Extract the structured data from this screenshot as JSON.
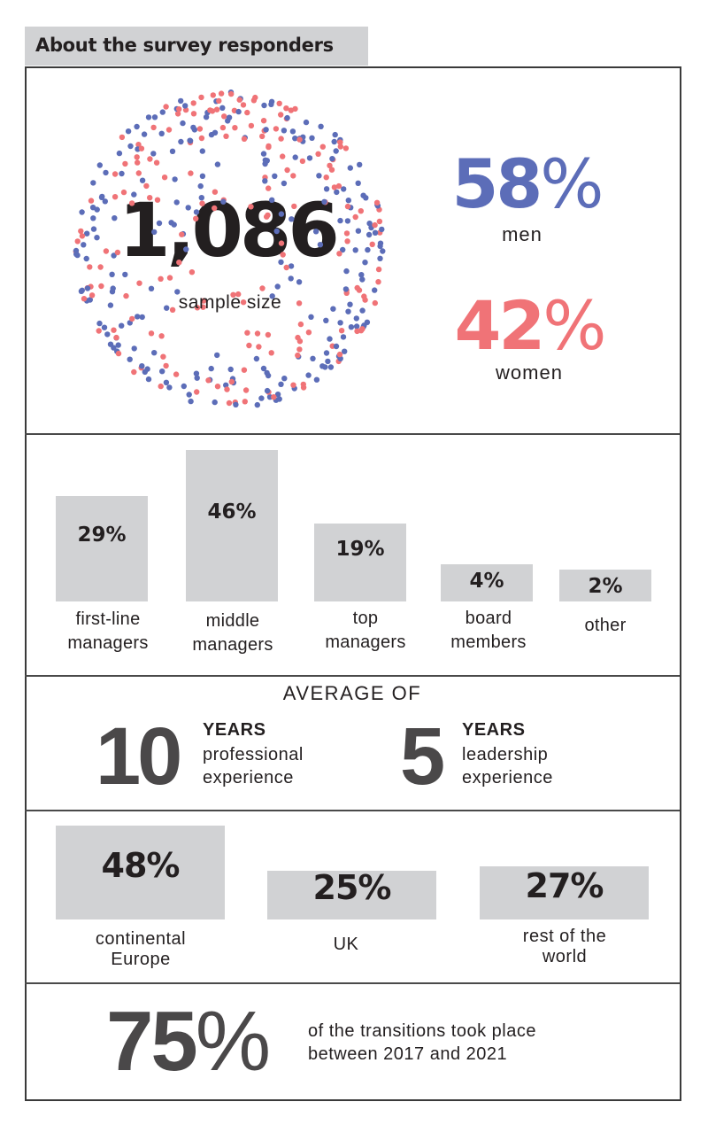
{
  "header": {
    "title": "About the survey responders"
  },
  "colors": {
    "men": "#5c6db8",
    "women": "#f07377",
    "bar": "#d1d2d4",
    "text": "#231f20",
    "stat_gray": "#4a4849"
  },
  "sample": {
    "number": "1,086",
    "label": "sample size",
    "dot_cloud": {
      "men_share": 0.58,
      "women_share": 0.42
    }
  },
  "gender": {
    "men": {
      "value": "58",
      "sign": "%",
      "label": "men"
    },
    "women": {
      "value": "42",
      "sign": "%",
      "label": "women"
    }
  },
  "chart_data": {
    "type": "bar",
    "title": "",
    "categories": [
      "first-line managers",
      "middle managers",
      "top managers",
      "board members",
      "other"
    ],
    "values": [
      29,
      46,
      19,
      4,
      2
    ],
    "xlabel": "",
    "ylabel": "",
    "grid": false
  },
  "roles": {
    "bars": [
      {
        "value_label": "29%",
        "label_line1": "first-line",
        "label_line2": "managers"
      },
      {
        "value_label": "46%",
        "label_line1": "middle",
        "label_line2": "managers"
      },
      {
        "value_label": "19%",
        "label_line1": "top",
        "label_line2": "managers"
      },
      {
        "value_label": "4%",
        "label_line1": "board",
        "label_line2": "members"
      },
      {
        "value_label": "2%",
        "label_line1": "other",
        "label_line2": ""
      }
    ]
  },
  "experience": {
    "title": "AVERAGE OF",
    "professional": {
      "number": "10",
      "unit": "YEARS",
      "line1": "professional",
      "line2": "experience"
    },
    "leadership": {
      "number": "5",
      "unit": "YEARS",
      "line1": "leadership",
      "line2": "experience"
    }
  },
  "regions": {
    "items": [
      {
        "value": 48,
        "value_label": "48%",
        "label_line1": "continental",
        "label_line2": "Europe"
      },
      {
        "value": 25,
        "value_label": "25%",
        "label_line1": "UK",
        "label_line2": ""
      },
      {
        "value": 27,
        "value_label": "27%",
        "label_line1": "rest of the",
        "label_line2": "world"
      }
    ]
  },
  "transitions": {
    "value": "75",
    "sign": "%",
    "line1": "of the transitions took place",
    "line2": "between 2017 and 2021"
  }
}
